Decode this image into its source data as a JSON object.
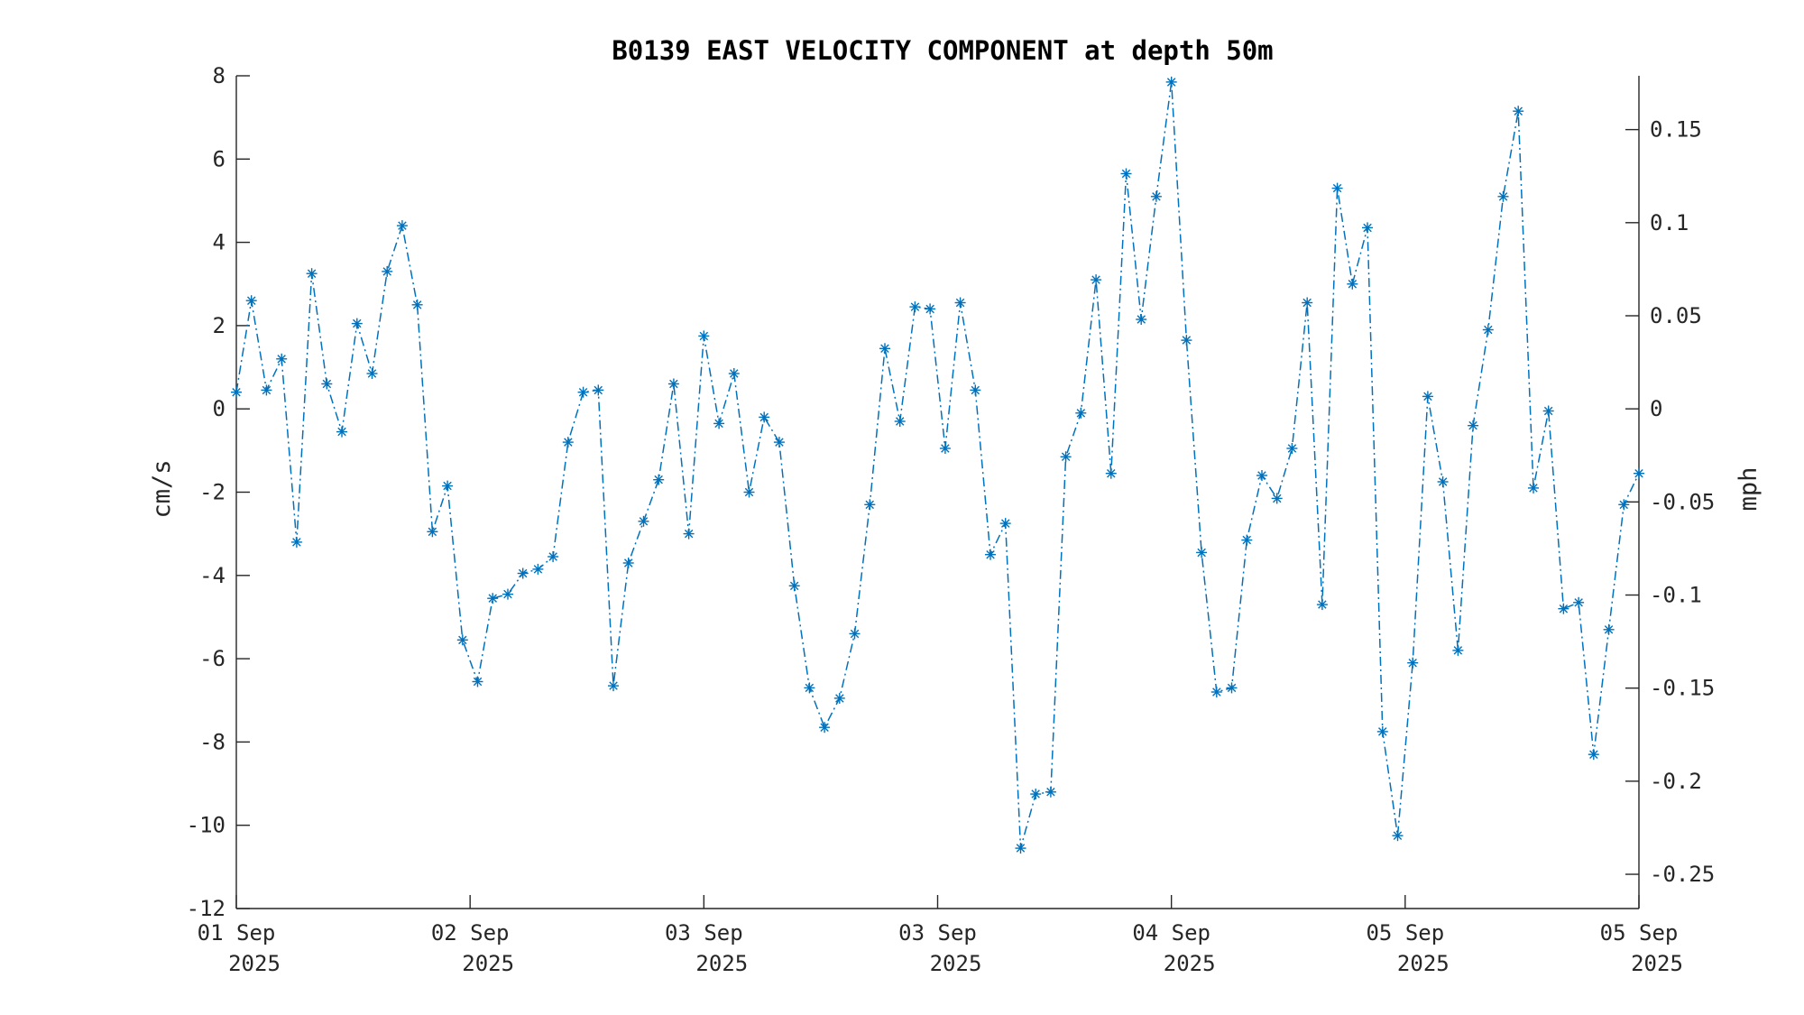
{
  "chart_data": {
    "type": "line",
    "title": "B0139 EAST VELOCITY COMPONENT at depth 50m",
    "ylabel": "cm/s",
    "y2label": "mph",
    "ylim": [
      -12,
      8
    ],
    "yticks": [
      "8",
      "6",
      "4",
      "2",
      "0",
      "-2",
      "-4",
      "-6",
      "-8",
      "-10",
      "-12"
    ],
    "y2lim": [
      -0.2684,
      0.1789
    ],
    "y2ticks": [
      "0.15",
      "0.1",
      "0.05",
      "0",
      "-0.05",
      "-0.1",
      "-0.15",
      "-0.2",
      "-0.25"
    ],
    "xticks": [
      {
        "line1": "01 Sep",
        "line2": "2025"
      },
      {
        "line1": "02 Sep",
        "line2": "2025"
      },
      {
        "line1": "03 Sep",
        "line2": "2025"
      },
      {
        "line1": "03 Sep",
        "line2": "2025"
      },
      {
        "line1": "04 Sep",
        "line2": "2025"
      },
      {
        "line1": "05 Sep",
        "line2": "2025"
      },
      {
        "line1": "05 Sep",
        "line2": "2025"
      }
    ],
    "grid": false,
    "color": "#0072BD",
    "line_style": "dash-dot",
    "marker": "asterisk",
    "series": [
      {
        "values": [
          0.4,
          2.6,
          0.45,
          1.2,
          -3.2,
          3.25,
          0.6,
          -0.55,
          2.05,
          0.85,
          3.3,
          4.4,
          2.5,
          -2.95,
          -1.85,
          -5.55,
          -6.55,
          -4.55,
          -4.45,
          -3.95,
          -3.85,
          -3.55,
          -0.8,
          0.4,
          0.45,
          -6.65,
          -3.7,
          -2.7,
          -1.7,
          0.6,
          -3.0,
          1.75,
          -0.35,
          0.85,
          -2.0,
          -0.2,
          -0.8,
          -4.25,
          -6.7,
          -7.65,
          -6.95,
          -5.4,
          -2.3,
          1.45,
          -0.3,
          2.45,
          2.4,
          -0.95,
          2.55,
          0.45,
          -3.5,
          -2.75,
          -10.55,
          -9.25,
          -9.2,
          -1.15,
          -0.1,
          3.1,
          -1.55,
          5.65,
          2.15,
          5.1,
          7.85,
          1.65,
          -3.45,
          -6.8,
          -6.7,
          -3.15,
          -1.6,
          -2.15,
          -0.95,
          2.55,
          -4.7,
          5.3,
          3.0,
          4.35,
          -7.75,
          -10.25,
          -6.1,
          0.3,
          -1.75,
          -5.8,
          -0.4,
          1.9,
          5.1,
          7.15,
          -1.9,
          -0.05,
          -4.8,
          -4.65,
          -8.3,
          -5.3,
          -2.3,
          -1.55
        ]
      }
    ]
  }
}
